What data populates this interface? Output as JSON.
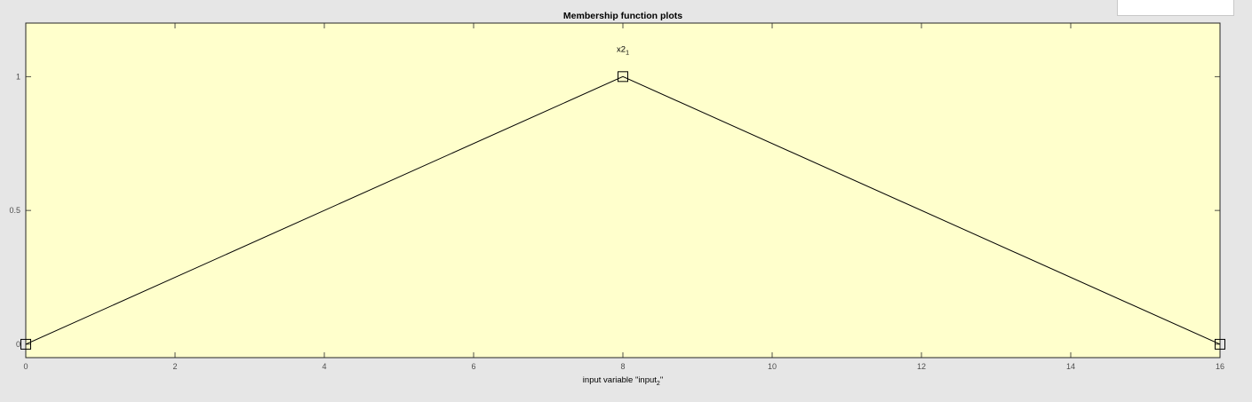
{
  "chart_data": {
    "type": "line",
    "title": "Membership function plots",
    "xlabel": {
      "main": "input variable \"input",
      "sub": "2",
      "end": "\""
    },
    "ylabel": "",
    "xlim": [
      0,
      16
    ],
    "ylim": [
      -0.05,
      1.2
    ],
    "x_ticks": [
      0,
      2,
      4,
      6,
      8,
      10,
      12,
      14,
      16
    ],
    "x_tick_labels": [
      "0",
      "2",
      "4",
      "6",
      "8",
      "10",
      "12",
      "14",
      "16"
    ],
    "y_ticks": [
      0,
      0.5,
      1
    ],
    "y_tick_labels": [
      "0",
      "0.5",
      "1"
    ],
    "grid": false,
    "series": [
      {
        "label_main": "x2",
        "label_sub": "1",
        "x": [
          0,
          8,
          16
        ],
        "y": [
          0,
          1,
          0
        ],
        "markers": [
          0,
          8,
          16
        ]
      }
    ],
    "colors": {
      "axes_bg": "#ffffcc",
      "figure_bg": "#e6e6e6",
      "line": "#000000"
    }
  }
}
